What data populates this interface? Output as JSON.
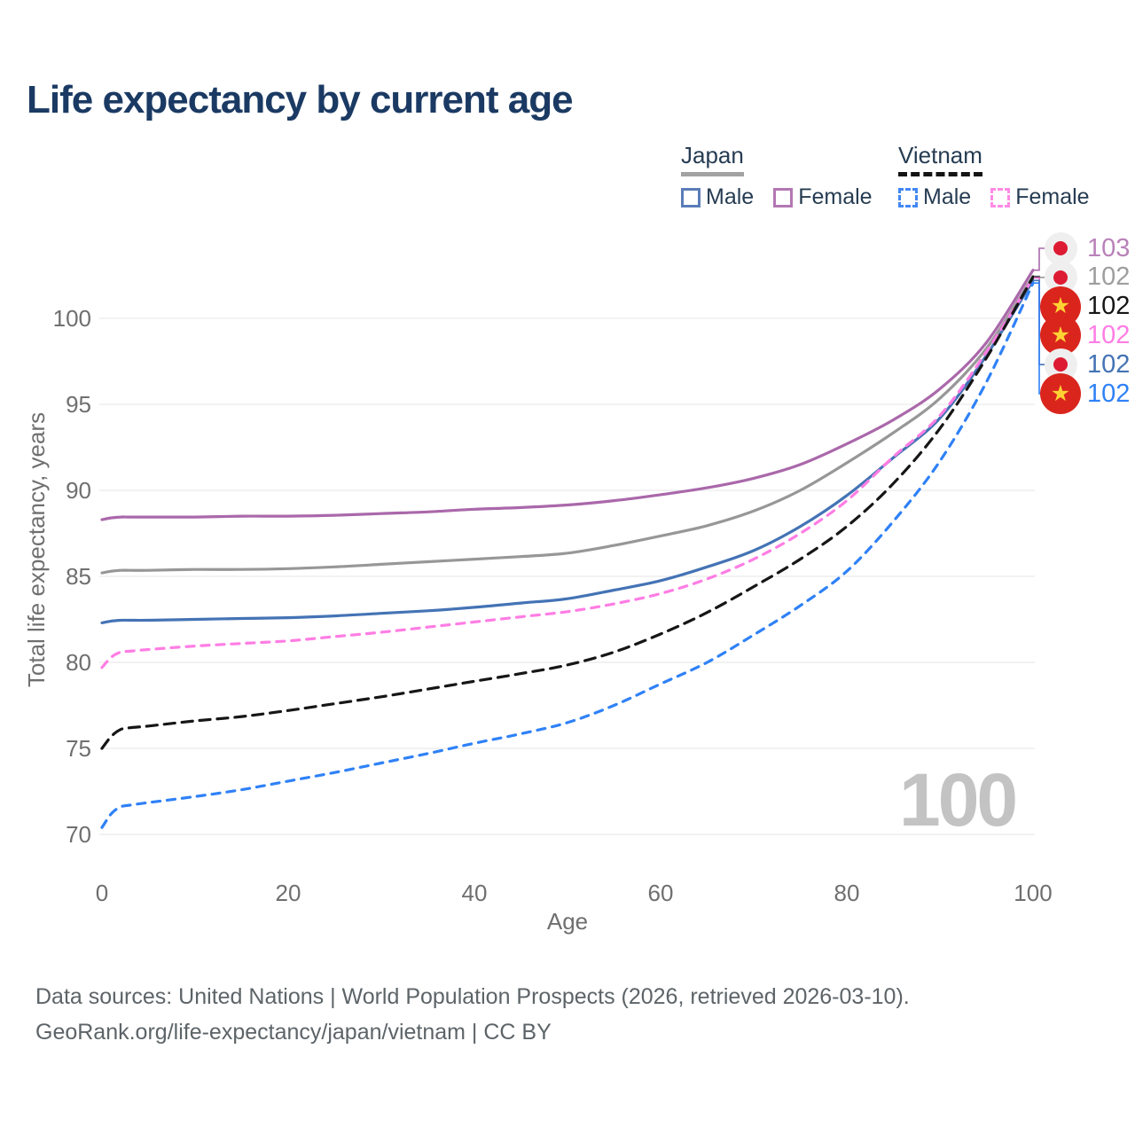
{
  "title": "Life expectancy by current age",
  "legend": {
    "groups": [
      {
        "label": "Japan",
        "style": "solid",
        "underline_color": "#a2a2a2",
        "items": [
          {
            "label": "Male",
            "color": "#5a7db9"
          },
          {
            "label": "Female",
            "color": "#b377b3"
          }
        ]
      },
      {
        "label": "Vietnam",
        "style": "dashed",
        "underline_color": "#141414",
        "items": [
          {
            "label": "Male",
            "color": "#4287f5"
          },
          {
            "label": "Female",
            "color": "#ff8ae6"
          }
        ]
      }
    ]
  },
  "watermark": "100",
  "footer": {
    "line1": "Data sources: United Nations | World Population Prospects (2026, retrieved 2026-03-10).",
    "line2": "GeoRank.org/life-expectancy/japan/vietnam | CC BY"
  },
  "icons": {
    "japan_flag": "white-circle-red-dot",
    "vietnam_flag": "red-circle-gold-star",
    "vietnam_star_glyph": "★"
  },
  "colors": {
    "title": "#1b3a63",
    "axis_text": "#6f6f6f",
    "grid": "#eaeaea",
    "footer_text": "#5d6468",
    "watermark": "#c3c3c3",
    "legend_text": "#263c52"
  },
  "end_labels": [
    {
      "series": "japan-female",
      "value": "103",
      "flag": "japan"
    },
    {
      "series": "japan-all",
      "value": "102",
      "flag": "japan"
    },
    {
      "series": "vietnam-all",
      "value": "102",
      "flag": "vietnam"
    },
    {
      "series": "vietnam-female",
      "value": "102",
      "flag": "vietnam"
    },
    {
      "series": "japan-male",
      "value": "102",
      "flag": "japan"
    },
    {
      "series": "vietnam-male",
      "value": "102",
      "flag": "vietnam"
    }
  ],
  "chart_data": {
    "type": "line",
    "title": "Life expectancy by current age",
    "xlabel": "Age",
    "ylabel": "Total life expectancy, years",
    "xlim": [
      0,
      100
    ],
    "ylim": [
      70,
      100
    ],
    "xticks": [
      0,
      20,
      40,
      60,
      80,
      100
    ],
    "yticks": [
      70,
      75,
      80,
      85,
      90,
      95,
      100
    ],
    "grid": "horizontal",
    "legend_position": "top-right",
    "x": [
      0,
      1,
      2,
      3,
      5,
      10,
      15,
      20,
      25,
      30,
      35,
      40,
      45,
      50,
      55,
      60,
      65,
      70,
      75,
      80,
      85,
      90,
      95,
      100
    ],
    "series": [
      {
        "id": "japan-all",
        "name": "Japan",
        "country": "Japan",
        "sex": "All",
        "style": "solid",
        "color": "#979797",
        "label_color": "#9e9e9e",
        "dash": "",
        "values": [
          85.2,
          85.3,
          85.35,
          85.35,
          85.35,
          85.4,
          85.4,
          85.45,
          85.55,
          85.7,
          85.85,
          86.0,
          86.15,
          86.35,
          86.8,
          87.35,
          87.95,
          88.8,
          90.0,
          91.6,
          93.35,
          95.35,
          98.25,
          102.45
        ]
      },
      {
        "id": "japan-female",
        "name": "Japan Female",
        "country": "Japan",
        "sex": "Female",
        "style": "solid",
        "color": "#aa68aa",
        "label_color": "#b981b9",
        "dash": "",
        "values": [
          88.3,
          88.4,
          88.45,
          88.45,
          88.45,
          88.45,
          88.5,
          88.5,
          88.55,
          88.65,
          88.75,
          88.9,
          89.0,
          89.15,
          89.4,
          89.75,
          90.15,
          90.7,
          91.5,
          92.7,
          94.1,
          95.9,
          98.6,
          102.8
        ]
      },
      {
        "id": "japan-male",
        "name": "Japan Male",
        "country": "Japan",
        "sex": "Male",
        "style": "solid",
        "color": "#4473b5",
        "label_color": "#4473b5",
        "dash": "",
        "values": [
          82.3,
          82.4,
          82.45,
          82.45,
          82.45,
          82.5,
          82.55,
          82.6,
          82.7,
          82.85,
          83.0,
          83.2,
          83.45,
          83.7,
          84.2,
          84.75,
          85.55,
          86.5,
          87.9,
          89.7,
          91.9,
          94.2,
          97.85,
          102.2
        ]
      },
      {
        "id": "vietnam-female",
        "name": "Vietnam Female",
        "country": "Vietnam",
        "sex": "Female",
        "style": "dashed",
        "color": "#ff7de4",
        "label_color": "#ff7de4",
        "dash": "9 8",
        "values": [
          79.7,
          80.3,
          80.6,
          80.65,
          80.75,
          80.95,
          81.1,
          81.25,
          81.5,
          81.75,
          82.05,
          82.35,
          82.65,
          82.95,
          83.4,
          84.0,
          84.85,
          86.0,
          87.5,
          89.4,
          91.95,
          94.35,
          98.05,
          102.35
        ]
      },
      {
        "id": "vietnam-all",
        "name": "Vietnam",
        "country": "Vietnam",
        "sex": "All",
        "style": "dashed",
        "color": "#161616",
        "label_color": "#161616",
        "dash": "12 8",
        "values": [
          75.0,
          75.7,
          76.1,
          76.2,
          76.3,
          76.6,
          76.85,
          77.2,
          77.6,
          78.0,
          78.45,
          78.9,
          79.35,
          79.85,
          80.6,
          81.65,
          82.9,
          84.4,
          86.0,
          87.9,
          90.4,
          93.6,
          97.7,
          102.4
        ]
      },
      {
        "id": "vietnam-male",
        "name": "Vietnam Male",
        "country": "Vietnam",
        "sex": "Male",
        "style": "dashed",
        "color": "#2f81f7",
        "label_color": "#2f81f7",
        "dash": "9 8",
        "values": [
          70.4,
          71.2,
          71.6,
          71.7,
          71.85,
          72.2,
          72.6,
          73.1,
          73.6,
          74.15,
          74.7,
          75.3,
          75.85,
          76.5,
          77.5,
          78.75,
          80.0,
          81.6,
          83.3,
          85.3,
          88.2,
          91.7,
          96.3,
          102.05
        ]
      }
    ]
  }
}
